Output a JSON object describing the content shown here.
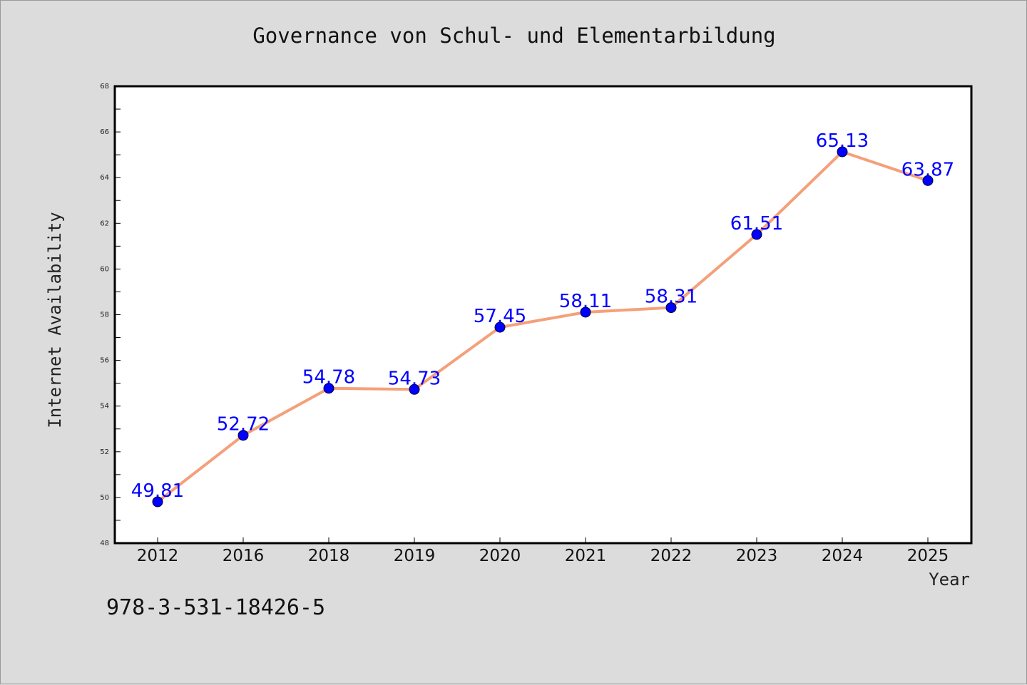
{
  "chart_data": {
    "type": "line",
    "title": "Governance von Schul- und Elementarbildung",
    "xlabel": "Year",
    "ylabel": "Internet Availability",
    "categories": [
      "2012",
      "2016",
      "2018",
      "2019",
      "2020",
      "2021",
      "2022",
      "2023",
      "2024",
      "2025"
    ],
    "series": [
      {
        "values": [
          49.81,
          52.72,
          54.78,
          54.73,
          57.45,
          58.11,
          58.31,
          61.51,
          65.13,
          63.87
        ]
      }
    ],
    "data_labels": [
      "49.81",
      "52.72",
      "54.78",
      "54.73",
      "57.45",
      "58.11",
      "58.31",
      "61.51",
      "65.13",
      "63.87"
    ],
    "ylim": [
      48,
      68
    ],
    "yticks": [
      48,
      50,
      52,
      54,
      56,
      58,
      60,
      62,
      64,
      66,
      68
    ],
    "grid": false,
    "line_color": "#f4a07a",
    "marker_color": "#0000ff",
    "label_color": "#0000ff"
  },
  "footer": {
    "isbn": "978-3-531-18426-5"
  }
}
